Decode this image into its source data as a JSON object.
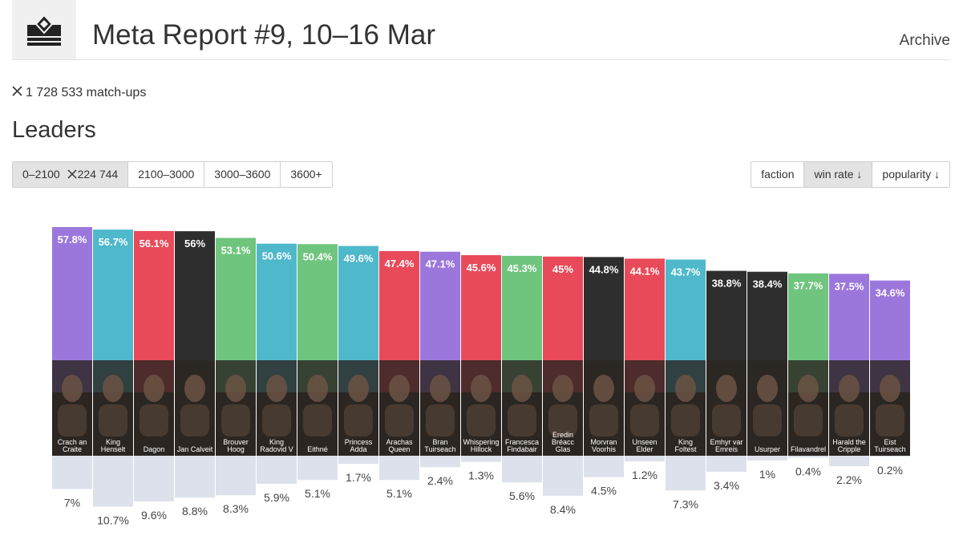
{
  "header": {
    "title": "Meta Report #9, 10–16 Mar",
    "archive_label": "Archive",
    "logo_icon": "crown-throne-icon"
  },
  "matchups": {
    "icon": "close-icon",
    "text": "1 728 533 match-ups"
  },
  "section": {
    "title": "Leaders"
  },
  "ranges": [
    {
      "label": "0–2100",
      "count": "224 744",
      "active": true
    },
    {
      "label": "2100–3000",
      "active": false
    },
    {
      "label": "3000–3600",
      "active": false
    },
    {
      "label": "3600+",
      "active": false
    }
  ],
  "sorts": [
    {
      "label": "faction",
      "active": false
    },
    {
      "label": "win rate ↓",
      "active": true
    },
    {
      "label": "popularity ↓",
      "active": false
    }
  ],
  "colors": {
    "monsters": "#e84a5a",
    "nilfgaard": "#2e2e2e",
    "northern_realms": "#4fb8cb",
    "scoiatael": "#6fc47e",
    "skellige": "#9b77dc",
    "popularity_bar": "#dde1eb"
  },
  "chart_data": {
    "type": "bar",
    "categories": [
      "Crach an Craite",
      "King Henselt",
      "Dagon",
      "Jan Calveit",
      "Brouver Hoog",
      "King Radovid V",
      "Eithné",
      "Princess Adda",
      "Arachas Queen",
      "Bran Tuirseach",
      "Whispering Hillock",
      "Francesca Findabair",
      "Eredin Bréacc Glas",
      "Morvran Voorhis",
      "Unseen Elder",
      "King Foltest",
      "Emhyr var Emreis",
      "Usurper",
      "Filavandrel",
      "Harald the Cripple",
      "Eist Tuirseach"
    ],
    "category_lines": [
      [
        "Crach an",
        "Craite"
      ],
      [
        "King",
        "Henselt"
      ],
      [
        "Dagon"
      ],
      [
        "Jan Calveit"
      ],
      [
        "Brouver",
        "Hoog"
      ],
      [
        "King",
        "Radovid V"
      ],
      [
        "Eithné"
      ],
      [
        "Princess",
        "Adda"
      ],
      [
        "Arachas",
        "Queen"
      ],
      [
        "Bran",
        "Tuirseach"
      ],
      [
        "Whispering",
        "Hillock"
      ],
      [
        "Francesca",
        "Findabair"
      ],
      [
        "Eredin",
        "Bréacc",
        "Glas"
      ],
      [
        "Morvran",
        "Voorhis"
      ],
      [
        "Unseen",
        "Elder"
      ],
      [
        "King",
        "Foltest"
      ],
      [
        "Emhyr var",
        "Emreis"
      ],
      [
        "Usurper"
      ],
      [
        "Filavandrel"
      ],
      [
        "Harald the",
        "Cripple"
      ],
      [
        "Eist",
        "Tuirseach"
      ]
    ],
    "factions": [
      "skellige",
      "northern_realms",
      "monsters",
      "nilfgaard",
      "scoiatael",
      "northern_realms",
      "scoiatael",
      "northern_realms",
      "monsters",
      "skellige",
      "monsters",
      "scoiatael",
      "monsters",
      "nilfgaard",
      "monsters",
      "northern_realms",
      "nilfgaard",
      "nilfgaard",
      "scoiatael",
      "skellige",
      "skellige"
    ],
    "series": [
      {
        "name": "win rate",
        "values": [
          57.8,
          56.7,
          56.1,
          56,
          53.1,
          50.6,
          50.4,
          49.6,
          47.4,
          47.1,
          45.6,
          45.3,
          45,
          44.8,
          44.1,
          43.7,
          38.8,
          38.4,
          37.7,
          37.5,
          34.6
        ],
        "labels": [
          "57.8%",
          "56.7%",
          "56.1%",
          "56%",
          "53.1%",
          "50.6%",
          "50.4%",
          "49.6%",
          "47.4%",
          "47.1%",
          "45.6%",
          "45.3%",
          "45%",
          "44.8%",
          "44.1%",
          "43.7%",
          "38.8%",
          "38.4%",
          "37.7%",
          "37.5%",
          "34.6%"
        ]
      },
      {
        "name": "popularity",
        "values": [
          7,
          10.7,
          9.6,
          8.8,
          8.3,
          5.9,
          5.1,
          1.7,
          5.1,
          2.4,
          1.3,
          5.6,
          8.4,
          4.5,
          1.2,
          7.3,
          3.4,
          1,
          0.4,
          2.2,
          0.2
        ],
        "labels": [
          "7%",
          "10.7%",
          "9.6%",
          "8.8%",
          "8.3%",
          "5.9%",
          "5.1%",
          "1.7%",
          "5.1%",
          "2.4%",
          "1.3%",
          "5.6%",
          "8.4%",
          "4.5%",
          "1.2%",
          "7.3%",
          "3.4%",
          "1%",
          "0.4%",
          "2.2%",
          "0.2%"
        ]
      }
    ]
  }
}
